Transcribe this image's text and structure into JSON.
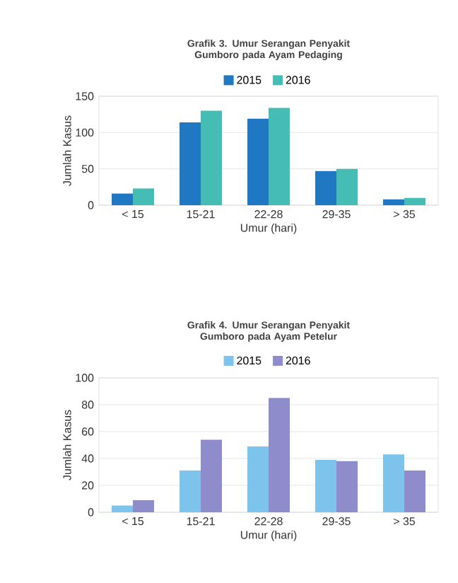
{
  "chart_data": [
    {
      "type": "bar",
      "title": "Grafik 3. Umur Serangan Penyakit Gumboro pada Ayam Pedaging",
      "xlabel": "Umur (hari)",
      "ylabel": "Jumlah Kasus",
      "categories": [
        "< 15",
        "15-21",
        "22-28",
        "29-35",
        "> 35"
      ],
      "series": [
        {
          "name": "2015",
          "color": "#1f78c1",
          "values": [
            16,
            114,
            119,
            47,
            8
          ]
        },
        {
          "name": "2016",
          "color": "#45bcb4",
          "values": [
            23,
            130,
            134,
            50,
            10
          ]
        }
      ],
      "ylim": [
        0,
        150
      ],
      "yticks": [
        0,
        50,
        100,
        150
      ],
      "grid": "y",
      "legend": "top"
    },
    {
      "type": "bar",
      "title": "Grafik 4. Umur Serangan Penyakit Gumboro pada Ayam Petelur",
      "xlabel": "Umur (hari)",
      "ylabel": "Jumlah Kasus",
      "categories": [
        "< 15",
        "15-21",
        "22-28",
        "29-35",
        "> 35"
      ],
      "series": [
        {
          "name": "2015",
          "color": "#7cc4ec",
          "values": [
            5,
            31,
            49,
            39,
            43
          ]
        },
        {
          "name": "2016",
          "color": "#8f8ccb",
          "values": [
            9,
            54,
            85,
            38,
            31
          ]
        }
      ],
      "ylim": [
        0,
        100
      ],
      "yticks": [
        0,
        20,
        40,
        60,
        80,
        100
      ],
      "grid": "y",
      "legend": "top"
    }
  ]
}
